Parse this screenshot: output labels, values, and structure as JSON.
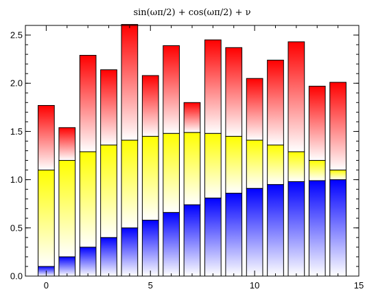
{
  "chart_data": {
    "type": "bar",
    "stacked": true,
    "title": "sin(ωπ/2) + cos(ωπ/2) + ν",
    "xlabel": "",
    "ylabel": "",
    "xlim": [
      -1,
      15
    ],
    "ylim": [
      0,
      2.6
    ],
    "xticks": [
      "0",
      "5",
      "10",
      "15"
    ],
    "yticks": [
      "0.0",
      "0.5",
      "1.0",
      "1.5",
      "2.0",
      "2.5"
    ],
    "x": [
      0,
      1,
      2,
      3,
      4,
      5,
      6,
      7,
      8,
      9,
      10,
      11,
      12,
      13,
      14
    ],
    "series": [
      {
        "name": "blue",
        "color": "#0000ff",
        "values": [
          0.1,
          0.2,
          0.3,
          0.4,
          0.5,
          0.58,
          0.66,
          0.74,
          0.81,
          0.86,
          0.91,
          0.95,
          0.98,
          0.99,
          1.0
        ]
      },
      {
        "name": "yellow",
        "color": "#ffff00",
        "values": [
          1.0,
          1.0,
          0.99,
          0.96,
          0.91,
          0.87,
          0.82,
          0.75,
          0.67,
          0.59,
          0.5,
          0.41,
          0.31,
          0.21,
          0.1
        ]
      },
      {
        "name": "red",
        "color": "#ff0000",
        "values": [
          0.67,
          0.34,
          1.0,
          0.78,
          1.2,
          0.63,
          0.91,
          0.31,
          0.97,
          0.92,
          0.64,
          0.88,
          1.14,
          0.77,
          0.91
        ]
      }
    ]
  }
}
